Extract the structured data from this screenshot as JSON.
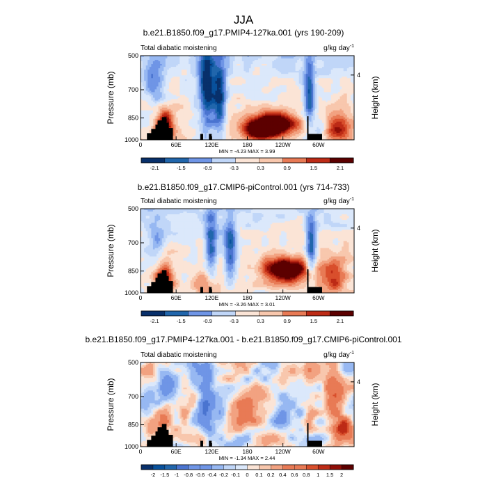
{
  "figure": {
    "title": "JJA"
  },
  "palette": {
    "colors": [
      "#08306b",
      "#08519c",
      "#2166ac",
      "#4a74d0",
      "#6f95e6",
      "#97b8f2",
      "#c0d6f8",
      "#dbe8fb",
      "#fbe4d6",
      "#f8c7ad",
      "#f2a281",
      "#e87a55",
      "#d94f2c",
      "#bd2b16",
      "#8f0e07",
      "#5c0000"
    ]
  },
  "chart_data": [
    {
      "type": "heatmap",
      "title": "b.e21.B1850.f09_g17.PMIP4-127ka.001 (yrs 190-209)",
      "left_label": "Total diabatic moistening",
      "units": "g/kg day",
      "units_exp": "-1",
      "ylabel": "Pressure (mb)",
      "y2label": "Height (km)",
      "y2_tick": "4",
      "xticks": [
        "0",
        "60E",
        "120E",
        "180",
        "120W",
        "60W"
      ],
      "yticks": [
        "500",
        "700",
        "850",
        "1000"
      ],
      "min_max": "MIN =  -4.23  MAX =   3.99",
      "colorbar_labels": [
        "-2.1",
        "-1.5",
        "-0.9",
        "-0.3",
        "0.3",
        "0.9",
        "1.5",
        "2.1"
      ]
    },
    {
      "type": "heatmap",
      "title": "b.e21.B1850.f09_g17.CMIP6-piControl.001 (yrs 714-733)",
      "left_label": "Total diabatic moistening",
      "units": "g/kg day",
      "units_exp": "-1",
      "ylabel": "Pressure (mb)",
      "y2label": "Height (km)",
      "y2_tick": "4",
      "xticks": [
        "0",
        "60E",
        "120E",
        "180",
        "120W",
        "60W"
      ],
      "yticks": [
        "500",
        "700",
        "850",
        "1000"
      ],
      "min_max": "MIN =  -3.26  MAX =   3.01",
      "colorbar_labels": [
        "-2.1",
        "-1.5",
        "-0.9",
        "-0.3",
        "0.3",
        "0.9",
        "1.5",
        "2.1"
      ]
    },
    {
      "type": "heatmap",
      "title": "b.e21.B1850.f09_g17.PMIP4-127ka.001 - b.e21.B1850.f09_g17.CMIP6-piControl.001",
      "left_label": "Total diabatic moistening",
      "units": "g/kg day",
      "units_exp": "-1",
      "ylabel": "Pressure (mb)",
      "y2label": "Height (km)",
      "y2_tick": "4",
      "xticks": [
        "0",
        "60E",
        "120E",
        "180",
        "120W",
        "60W"
      ],
      "yticks": [
        "500",
        "700",
        "850",
        "1000"
      ],
      "min_max": "MIN =  -1.34  MAX =   2.44",
      "colorbar_labels": [
        "-2",
        "-1.5",
        "-1",
        "-0.8",
        "-0.6",
        "-0.4",
        "-0.2",
        "-0.1",
        "0",
        "0.1",
        "0.2",
        "0.4",
        "0.6",
        "0.8",
        "1",
        "1.5",
        "2"
      ]
    }
  ]
}
